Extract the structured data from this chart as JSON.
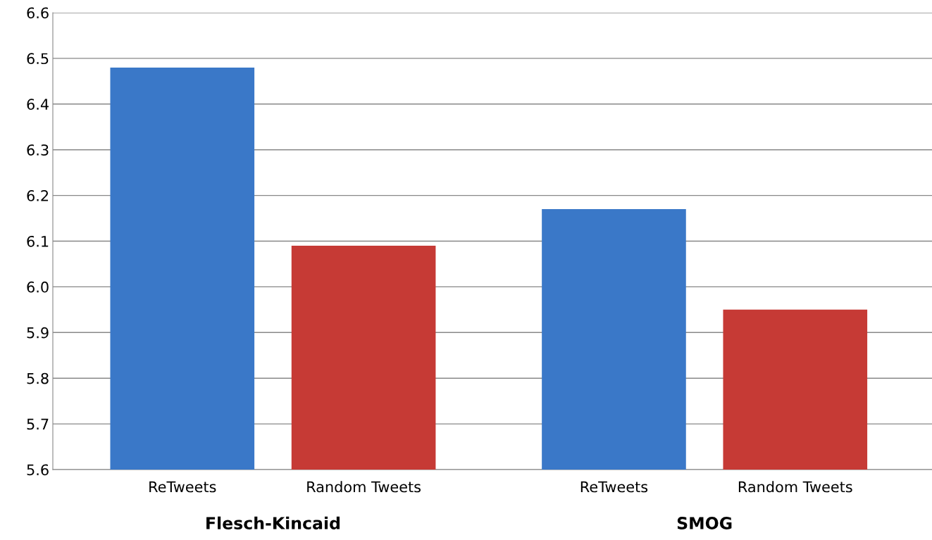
{
  "chart_data": {
    "type": "bar",
    "categories": [
      "Flesch-Kincaid",
      "SMOG"
    ],
    "series": [
      {
        "name": "ReTweets",
        "color": "#3a78c8",
        "values": [
          6.48,
          6.17
        ]
      },
      {
        "name": "Random Tweets",
        "color": "#c63a35",
        "values": [
          6.09,
          5.95
        ]
      }
    ],
    "ylim": [
      5.6,
      6.6
    ],
    "yticks": [
      5.6,
      5.7,
      5.8,
      5.9,
      {
        "value": 6.0,
        "label": "6.0"
      },
      6.1,
      6.2,
      6.3,
      6.4,
      6.5,
      6.6
    ],
    "grid": "y",
    "legend": false
  }
}
